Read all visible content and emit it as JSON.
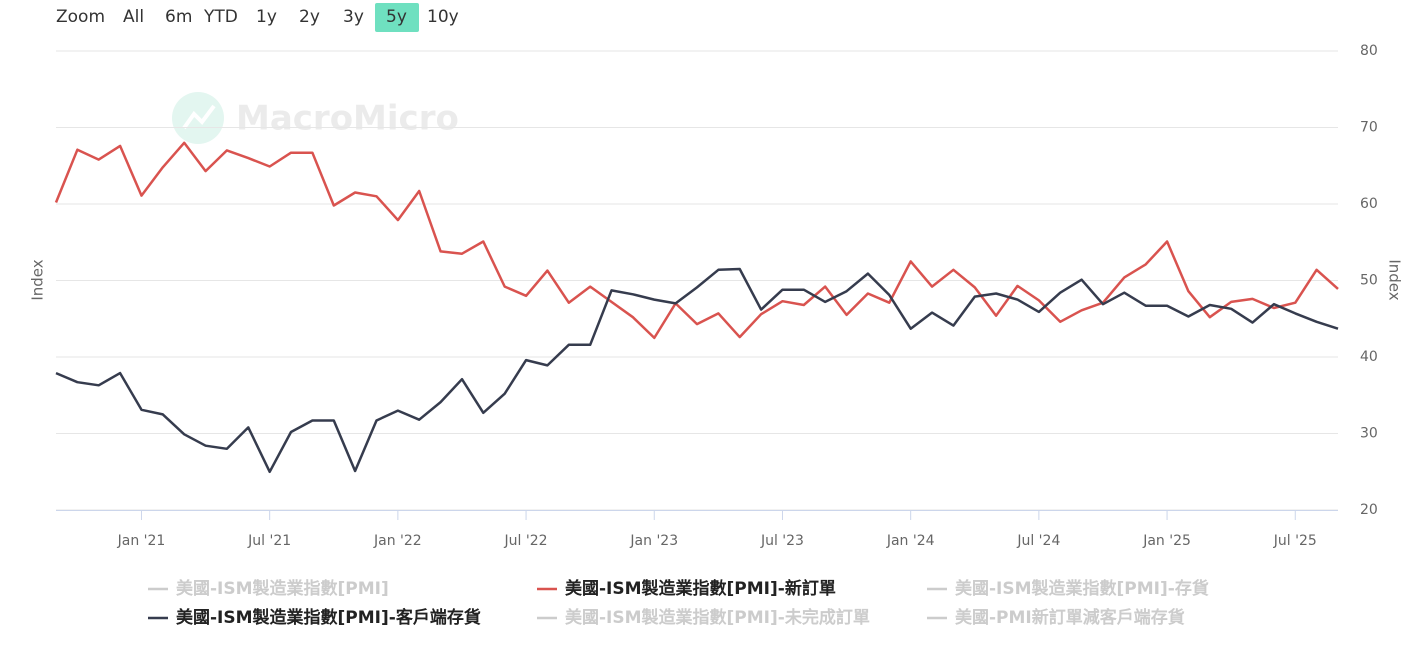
{
  "chart_data": {
    "type": "line",
    "range_selector": {
      "label": "Zoom",
      "buttons": [
        "All",
        "6m",
        "YTD",
        "1y",
        "2y",
        "3y",
        "5y",
        "10y"
      ],
      "selected": 6
    },
    "watermark": "MacroMicro",
    "y_label": "Index",
    "y2_label": "Index",
    "x": [
      "2020-09",
      "2020-10",
      "2020-11",
      "2020-12",
      "2021-01",
      "2021-02",
      "2021-03",
      "2021-04",
      "2021-05",
      "2021-06",
      "2021-07",
      "2021-08",
      "2021-09",
      "2021-10",
      "2021-11",
      "2021-12",
      "2022-01",
      "2022-02",
      "2022-03",
      "2022-04",
      "2022-05",
      "2022-06",
      "2022-07",
      "2022-08",
      "2022-09",
      "2022-10",
      "2022-11",
      "2022-12",
      "2023-01",
      "2023-02",
      "2023-03",
      "2023-04",
      "2023-05",
      "2023-06",
      "2023-07",
      "2023-08",
      "2023-09",
      "2023-10",
      "2023-11",
      "2023-12",
      "2024-01",
      "2024-02",
      "2024-03",
      "2024-04",
      "2024-05",
      "2024-06",
      "2024-07",
      "2024-08",
      "2024-09",
      "2024-10",
      "2024-11",
      "2024-12",
      "2025-01",
      "2025-02",
      "2025-03",
      "2025-04",
      "2025-05",
      "2025-06",
      "2025-07",
      "2025-08",
      "2025-09"
    ],
    "xlim": [
      "2020-09",
      "2025-09"
    ],
    "xticks": [
      {
        "value": "2021-01",
        "label": "Jan '21"
      },
      {
        "value": "2021-07",
        "label": "Jul '21"
      },
      {
        "value": "2022-01",
        "label": "Jan '22"
      },
      {
        "value": "2022-07",
        "label": "Jul '22"
      },
      {
        "value": "2023-01",
        "label": "Jan '23"
      },
      {
        "value": "2023-07",
        "label": "Jul '23"
      },
      {
        "value": "2024-01",
        "label": "Jan '24"
      },
      {
        "value": "2024-07",
        "label": "Jul '24"
      },
      {
        "value": "2025-01",
        "label": "Jan '25"
      },
      {
        "value": "2025-07",
        "label": "Jul '25"
      }
    ],
    "ylim": [
      20,
      80
    ],
    "yticks": [
      20,
      30,
      40,
      50,
      60,
      70,
      80
    ],
    "grid": true,
    "series": [
      {
        "name": "美國-ISM製造業指數[PMI]",
        "visible": false
      },
      {
        "name": "美國-ISM製造業指數[PMI]-新訂單",
        "color": "#d9534f",
        "values": [
          60.2,
          67.1,
          65.8,
          67.6,
          61.1,
          64.8,
          68.0,
          64.3,
          67.0,
          66.0,
          64.9,
          66.7,
          66.7,
          59.8,
          61.5,
          61.0,
          57.9,
          61.7,
          53.8,
          53.5,
          55.1,
          49.2,
          48.0,
          51.3,
          47.1,
          49.2,
          47.2,
          45.2,
          42.5,
          47.0,
          44.3,
          45.7,
          42.6,
          45.6,
          47.3,
          46.8,
          49.2,
          45.5,
          48.3,
          47.1,
          52.5,
          49.2,
          51.4,
          49.1,
          45.4,
          49.3,
          47.4,
          44.6,
          46.1,
          47.1,
          50.4,
          52.1,
          55.1,
          48.6,
          45.2,
          47.2,
          47.6,
          46.4,
          47.1,
          51.4,
          48.9
        ]
      },
      {
        "name": "美國-ISM製造業指數[PMI]-存貨",
        "visible": false
      },
      {
        "name": "美國-ISM製造業指數[PMI]-客戶端存貨",
        "color": "#363c4e",
        "values": [
          37.9,
          36.7,
          36.3,
          37.9,
          33.1,
          32.5,
          29.9,
          28.4,
          28.0,
          30.8,
          25.0,
          30.2,
          31.7,
          31.7,
          25.1,
          31.7,
          33.0,
          31.8,
          34.1,
          37.1,
          32.7,
          35.2,
          39.6,
          38.9,
          41.6,
          41.6,
          48.7,
          48.2,
          47.5,
          47.0,
          49.1,
          51.4,
          51.5,
          46.2,
          48.8,
          48.8,
          47.2,
          48.6,
          50.9,
          48.1,
          43.7,
          45.8,
          44.1,
          47.9,
          48.3,
          47.5,
          45.9,
          48.4,
          50.1,
          46.9,
          48.4,
          46.7,
          46.7,
          45.3,
          46.8,
          46.3,
          44.5,
          46.9,
          45.7,
          44.6,
          43.7
        ]
      },
      {
        "name": "美國-ISM製造業指數[PMI]-未完成訂單",
        "visible": false
      },
      {
        "name": "美國-PMI新訂單減客戶端存貨",
        "visible": false
      }
    ]
  }
}
